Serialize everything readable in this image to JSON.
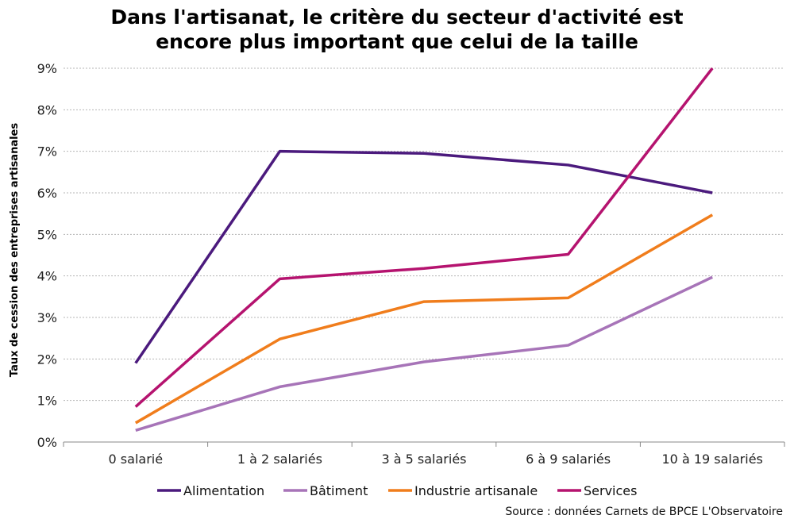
{
  "chart_data": {
    "type": "line",
    "title_lines": [
      "Dans l'artisanat, le critère du secteur d'activité est",
      "encore plus important que celui de la taille"
    ],
    "ylabel": "Taux de cession des entreprises artisanales",
    "xlabel": "",
    "categories": [
      "0 salarié",
      "1 à 2 salariés",
      "3 à 5 salariés",
      "6 à 9 salariés",
      "10 à 19 salariés"
    ],
    "yticks": [
      "0%",
      "1%",
      "2%",
      "3%",
      "4%",
      "5%",
      "6%",
      "7%",
      "8%",
      "9%"
    ],
    "ylim": [
      0,
      9
    ],
    "grid": true,
    "legend_position": "bottom",
    "series": [
      {
        "name": "Alimentation",
        "color": "#4b1a7d",
        "values": [
          1.9,
          7.0,
          6.95,
          6.67,
          6.0
        ]
      },
      {
        "name": "Bâtiment",
        "color": "#a774b8",
        "values": [
          0.28,
          1.33,
          1.93,
          2.33,
          3.97
        ]
      },
      {
        "name": "Industrie artisanale",
        "color": "#f07d1c",
        "values": [
          0.46,
          2.48,
          3.38,
          3.47,
          5.47
        ]
      },
      {
        "name": "Services",
        "color": "#b5136f",
        "values": [
          0.85,
          3.93,
          4.18,
          4.52,
          9.0
        ]
      }
    ],
    "source": "Source : données Carnets de BPCE L'Observatoire"
  }
}
